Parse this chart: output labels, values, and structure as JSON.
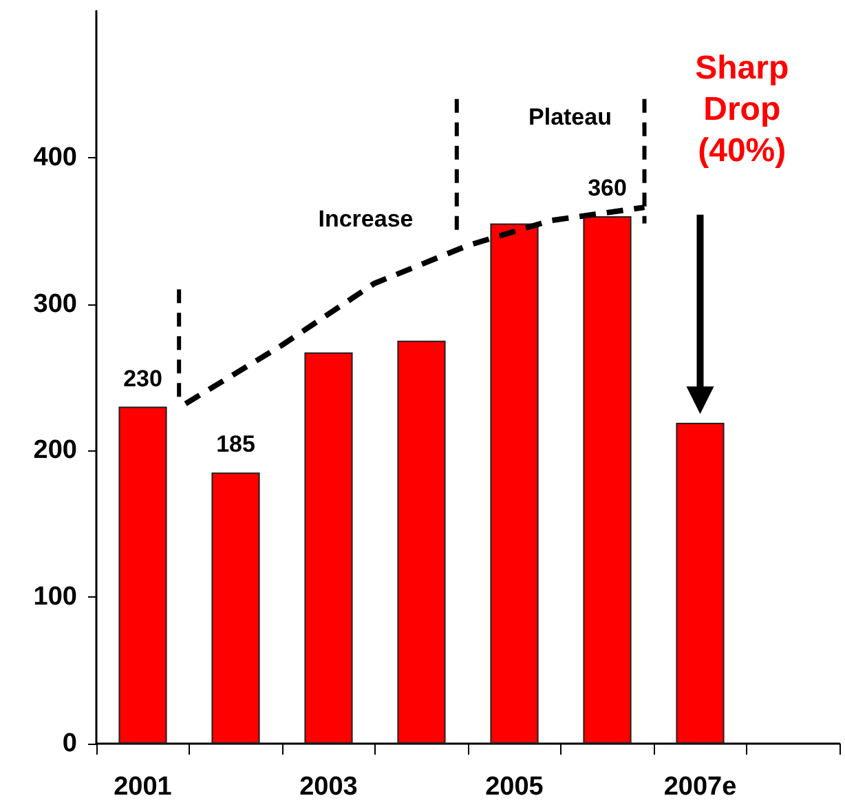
{
  "chart_data": {
    "type": "bar",
    "categories": [
      "2001",
      null,
      "2003",
      null,
      "2005",
      null,
      "2007e",
      null
    ],
    "values": [
      230,
      185,
      267,
      275,
      355,
      360,
      219,
      null
    ],
    "value_labels": [
      "230",
      "185",
      null,
      null,
      null,
      "360",
      null,
      null
    ],
    "color": "#ff0000",
    "ylim": [
      0,
      500
    ],
    "yticks": [
      0,
      100,
      200,
      300,
      400
    ],
    "grid": false,
    "annotations": [
      "Increase",
      "Plateau",
      "Sharp Drop (40%)"
    ]
  }
}
